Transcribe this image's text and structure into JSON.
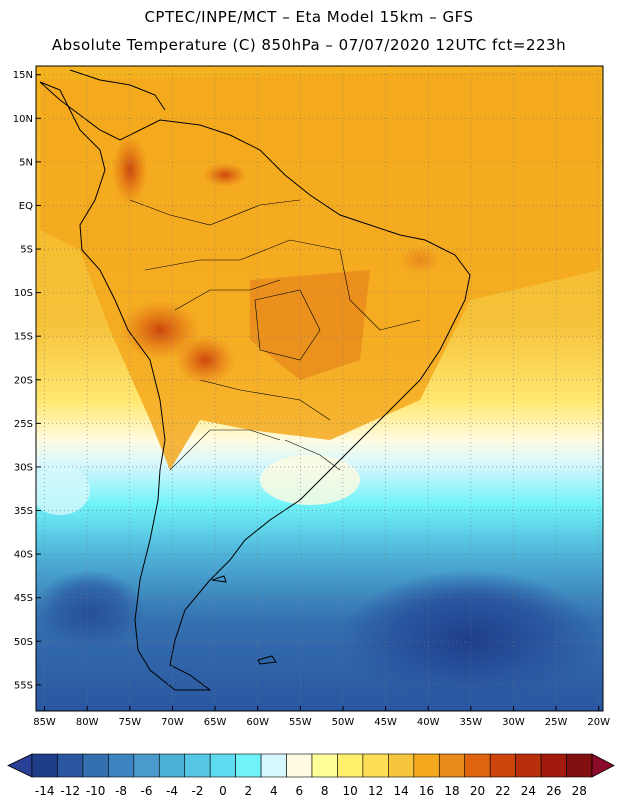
{
  "title_line1": "CPTEC/INPE/MCT –  Eta Model 15km – GFS",
  "title_line2": "Absolute Temperature (C) 850hPa – 07/07/2020 12UTC fct=223h",
  "lat_labels": [
    "15N",
    "10N",
    "5N",
    "EQ",
    "5S",
    "10S",
    "15S",
    "20S",
    "25S",
    "30S",
    "35S",
    "40S",
    "45S",
    "50S",
    "55S"
  ],
  "lon_labels": [
    "85W",
    "80W",
    "75W",
    "70W",
    "65W",
    "60W",
    "55W",
    "50W",
    "45W",
    "40W",
    "35W",
    "30W",
    "25W",
    "20W"
  ],
  "lon_range": [
    -86,
    -19.5
  ],
  "lat_range": [
    -58,
    16
  ],
  "grid": true,
  "colorbar": {
    "ticks": [
      "-14",
      "-12",
      "-10",
      "-8",
      "-6",
      "-4",
      "-2",
      "0",
      "2",
      "4",
      "6",
      "8",
      "10",
      "12",
      "14",
      "16",
      "18",
      "20",
      "22",
      "24",
      "26",
      "28"
    ],
    "colors": [
      "#1f3e8a",
      "#2a57a0",
      "#3470b0",
      "#3d85c0",
      "#4a9bcc",
      "#4eb1d8",
      "#55c7e4",
      "#5fdcef",
      "#6ff3f8",
      "#d5f7fd",
      "#fffbe1",
      "#ffff9a",
      "#ffef6b",
      "#ffdd55",
      "#f8c63c",
      "#f4a81d",
      "#e8891c",
      "#df6410",
      "#cc460c",
      "#b82f0b",
      "#a21a0b",
      "#821010"
    ],
    "low_color": "#2a3f96",
    "high_color": "#8c0a2a"
  }
}
